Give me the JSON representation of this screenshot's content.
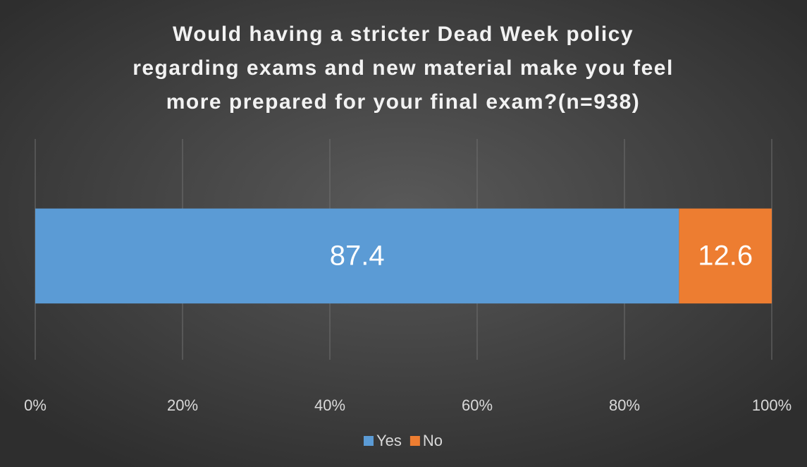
{
  "chart_data": {
    "type": "bar",
    "orientation": "horizontal",
    "stacked": true,
    "title": [
      "Would having a stricter Dead Week policy",
      "regarding exams and new material make you feel",
      "more prepared for your final exam?(n=938)"
    ],
    "categories": [
      null
    ],
    "series": [
      {
        "name": "Yes",
        "color": "#5b9bd5",
        "values": [
          87.4
        ]
      },
      {
        "name": "No",
        "color": "#ed7d31",
        "values": [
          12.6
        ]
      }
    ],
    "xlim": [
      0,
      100
    ],
    "xticks": [
      {
        "value": 0,
        "label": "0%"
      },
      {
        "value": 20,
        "label": "20%"
      },
      {
        "value": 40,
        "label": "40%"
      },
      {
        "value": 60,
        "label": "60%"
      },
      {
        "value": 80,
        "label": "80%"
      },
      {
        "value": 100,
        "label": "100%"
      }
    ],
    "grid": true,
    "legend": "bottom"
  }
}
